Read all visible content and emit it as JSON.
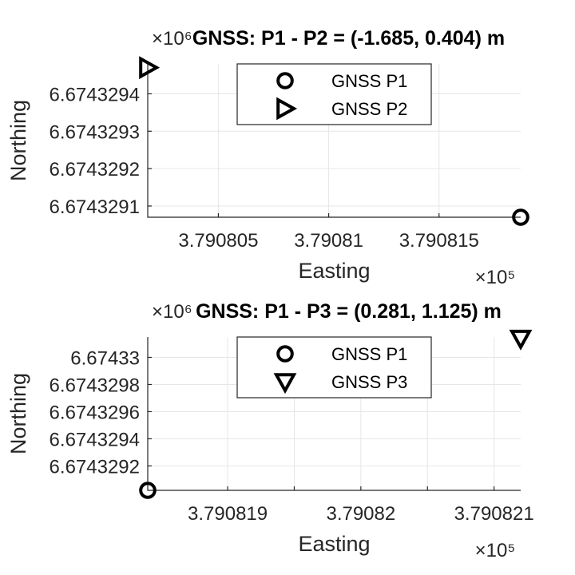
{
  "chart_data": [
    {
      "type": "scatter",
      "title": "GNSS: P1 - P2 =  (-1.685, 0.404) m",
      "xlabel": "Easting",
      "ylabel": "Northing",
      "x_multiplier": "×10⁵",
      "y_multiplier": "×10⁶",
      "xlim": [
        3.7908018,
        3.7908187
      ],
      "ylim": [
        6.67432907,
        6.67432948
      ],
      "xticks": [
        3.790805,
        3.79081,
        3.790815
      ],
      "xtick_labels": [
        "3.790805",
        "3.79081",
        "3.790815"
      ],
      "yticks": [
        6.6743291,
        6.6743292,
        6.6743293,
        6.6743294
      ],
      "ytick_labels": [
        "6.6743291",
        "6.6743292",
        "6.6743293",
        "6.6743294"
      ],
      "grid": true,
      "legend": {
        "placement": "top-center",
        "entries": [
          "GNSS P1",
          "GNSS P2"
        ]
      },
      "series": [
        {
          "name": "GNSS P1",
          "marker": "circle",
          "x": [
            3.7908187
          ],
          "y": [
            6.67432907
          ]
        },
        {
          "name": "GNSS P2",
          "marker": "triangle-right",
          "x": [
            3.7908018
          ],
          "y": [
            6.67432947
          ]
        }
      ]
    },
    {
      "type": "scatter",
      "title": "GNSS: P1 - P3 = (0.281, 1.125) m",
      "xlabel": "Easting",
      "ylabel": "Northing",
      "x_multiplier": "×10⁵",
      "y_multiplier": "×10⁶",
      "xlim": [
        3.7908184,
        3.7908212
      ],
      "ylim": [
        6.67432902,
        6.67433015
      ],
      "xticks": [
        3.790819,
        3.79082,
        3.790821
      ],
      "xtick_labels": [
        "3.790819",
        "3.79082",
        "3.790821"
      ],
      "minor_xticks": [
        3.7908195,
        3.7908205
      ],
      "yticks": [
        6.6743292,
        6.6743294,
        6.6743296,
        6.6743298,
        6.67433
      ],
      "ytick_labels": [
        "6.6743292",
        "6.6743294",
        "6.6743296",
        "6.6743298",
        "6.67433"
      ],
      "grid": true,
      "legend": {
        "placement": "top-center",
        "entries": [
          "GNSS P1",
          "GNSS P3"
        ]
      },
      "series": [
        {
          "name": "GNSS P1",
          "marker": "circle",
          "x": [
            3.7908184
          ],
          "y": [
            6.67432902
          ]
        },
        {
          "name": "GNSS P3",
          "marker": "triangle-down",
          "x": [
            3.7908212
          ],
          "y": [
            6.67433014
          ]
        }
      ]
    }
  ]
}
